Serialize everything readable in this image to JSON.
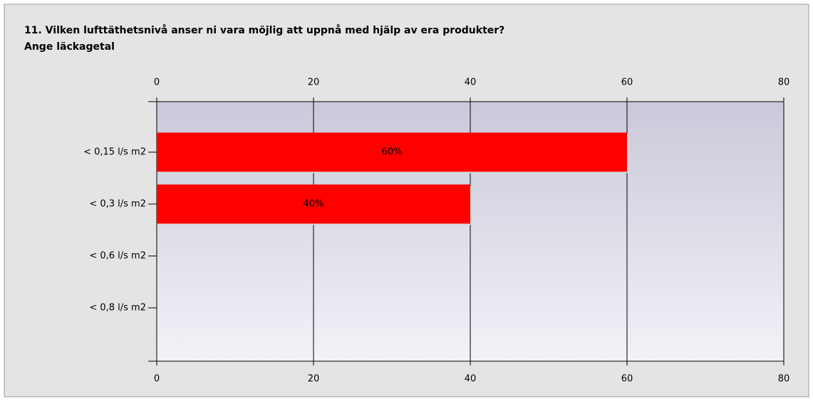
{
  "chart_data": {
    "type": "bar",
    "orientation": "horizontal",
    "title": "11. Vilken lufttäthetsnivå anser ni vara möjlig att uppnå med hjälp av era produkter?",
    "subtitle": "Ange läckagetal",
    "categories": [
      "< 0,15 l/s m2",
      "< 0,3 l/s m2",
      "< 0,6 l/s m2",
      "< 0,8 l/s m2"
    ],
    "values": [
      60,
      40,
      0,
      0
    ],
    "value_labels": [
      "60%",
      "40%",
      null,
      null
    ],
    "color": "#ff0000",
    "xlim": [
      0,
      80
    ],
    "xticks": [
      0,
      20,
      40,
      60,
      80
    ],
    "grid": true
  }
}
